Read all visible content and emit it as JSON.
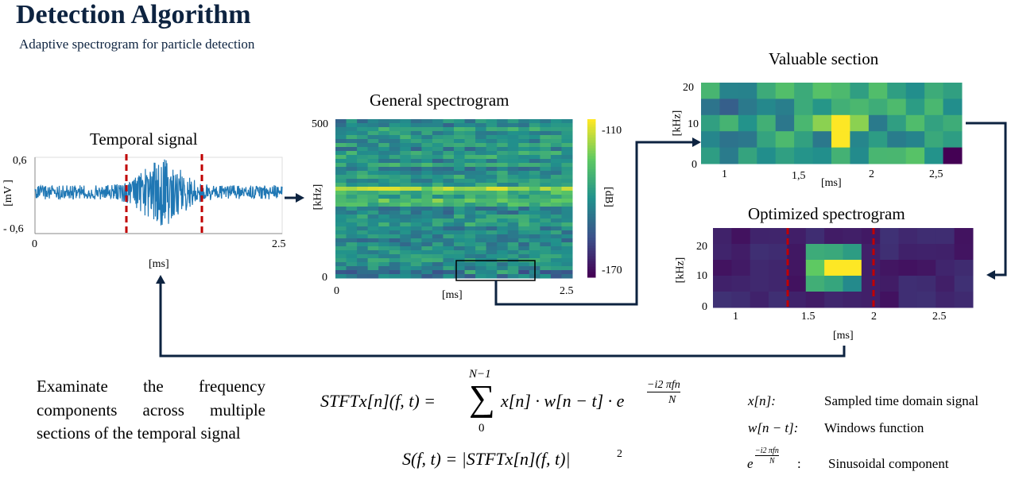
{
  "header": {
    "title": "Detection Algorithm",
    "subtitle": "Adaptive spectrogram for particle detection"
  },
  "temporal": {
    "title": "Temporal signal",
    "y_label": "[mV ]",
    "y_ticks": [
      "0,6",
      "- 0,6"
    ],
    "x_ticks": [
      "0",
      "2.5"
    ],
    "x_label": "[ms]"
  },
  "general": {
    "title": "General spectrogram",
    "y_label": "[kHz]",
    "y_ticks": [
      "500",
      "0"
    ],
    "x_ticks": [
      "0",
      "2.5"
    ],
    "x_label": "[ms]",
    "colorbar_ticks": [
      "-110",
      "-170"
    ],
    "colorbar_label": "[dB]"
  },
  "valuable": {
    "title": "Valuable section",
    "y_label": "[kHz]",
    "y_ticks": [
      "20",
      "10",
      "0"
    ],
    "x_ticks": [
      "1",
      "1,5",
      "2",
      "2,5"
    ],
    "x_label": "[ms]"
  },
  "optimized": {
    "title": "Optimized spectrogram",
    "y_label": "[kHz]",
    "y_ticks": [
      "20",
      "10",
      "0"
    ],
    "x_ticks": [
      "1",
      "1.5",
      "2",
      "2.5"
    ],
    "x_label": "[ms]"
  },
  "description": "Examinate the frequency components across multiple sections of the temporal signal",
  "formulas": {
    "stft_lhs": "STFTx[n](f, t) =",
    "sum_upper": "N−1",
    "sum_symbol": "∑",
    "sum_lower": "0",
    "stft_term": "x[n] · w[n − t] · e",
    "exp_num": "−i2 πfn",
    "exp_den": "N",
    "power_lhs": "S(f, t) = |STFTx[n](f, t)|",
    "power_exp": "2"
  },
  "definitions": [
    {
      "symbol": "x[n]:",
      "text": "Sampled time domain signal"
    },
    {
      "symbol": "w[n − t]:",
      "text": "Windows function"
    },
    {
      "symbol": "e",
      "exp_num": "−i2 πfn",
      "exp_den": "N",
      "colon": ":",
      "text": "Sinusoidal component"
    }
  ]
}
